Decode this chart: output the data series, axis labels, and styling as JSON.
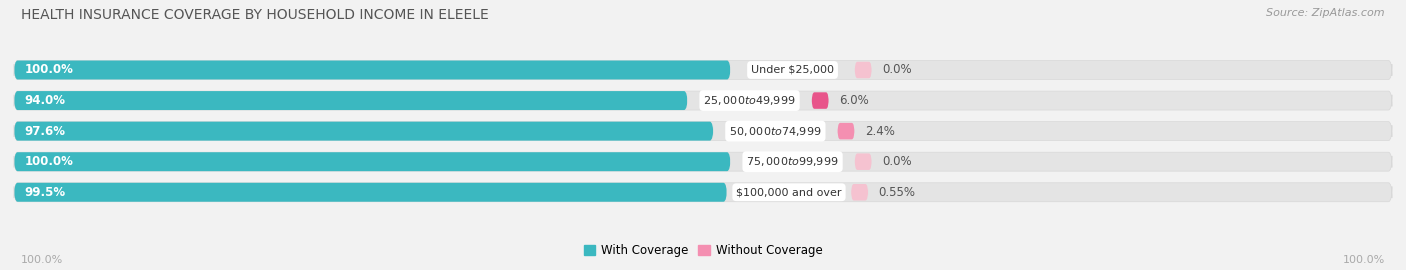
{
  "title": "HEALTH INSURANCE COVERAGE BY HOUSEHOLD INCOME IN ELEELE",
  "source": "Source: ZipAtlas.com",
  "categories": [
    "Under $25,000",
    "$25,000 to $49,999",
    "$50,000 to $74,999",
    "$75,000 to $99,999",
    "$100,000 and over"
  ],
  "with_coverage": [
    100.0,
    94.0,
    97.6,
    100.0,
    99.5
  ],
  "without_coverage": [
    0.0,
    6.0,
    2.4,
    0.0,
    0.55
  ],
  "with_coverage_labels": [
    "100.0%",
    "94.0%",
    "97.6%",
    "100.0%",
    "99.5%"
  ],
  "without_coverage_labels": [
    "0.0%",
    "6.0%",
    "2.4%",
    "0.0%",
    "0.55%"
  ],
  "color_with": "#3bb8c0",
  "color_without": "#f48fb1",
  "color_without_row1": "#f9c0d0",
  "color_without_row3": "#f9c0d0",
  "color_without_row4": "#f9c0d0",
  "color_without_row5": "#f9c0d0",
  "bg_color": "#f2f2f2",
  "bar_bg_color": "#e4e4e4",
  "title_fontsize": 10,
  "label_fontsize": 8.5,
  "tick_fontsize": 8,
  "source_fontsize": 8,
  "legend_fontsize": 8.5,
  "x_left_label": "100.0%",
  "x_right_label": "100.0%",
  "bar_max": 100.0,
  "bar_scale": 0.52,
  "pink_scale": 0.08,
  "without_colors": [
    "#f5c2d0",
    "#e8548a",
    "#f48fb1",
    "#f5c2d0",
    "#f5c2d0"
  ]
}
